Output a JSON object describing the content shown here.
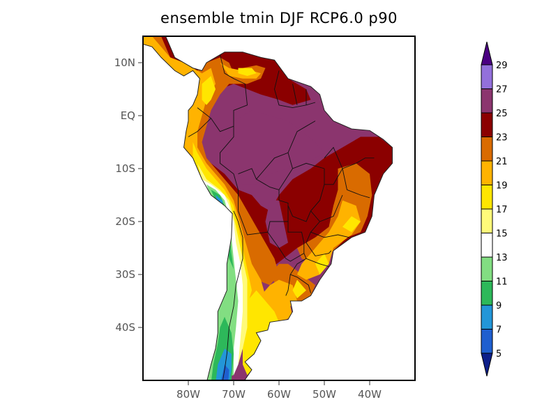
{
  "chart_data": {
    "type": "contour-map",
    "title": "ensemble tmin DJF RCP6.0 p90",
    "region": "South America",
    "xlim": [
      -90,
      -30
    ],
    "ylim": [
      -50,
      15
    ],
    "x_ticks": [
      {
        "value": -80,
        "label": "80W"
      },
      {
        "value": -70,
        "label": "70W"
      },
      {
        "value": -60,
        "label": "60W"
      },
      {
        "value": -50,
        "label": "50W"
      },
      {
        "value": -40,
        "label": "40W"
      }
    ],
    "y_ticks": [
      {
        "value": 10,
        "label": "10N"
      },
      {
        "value": 0,
        "label": "EQ"
      },
      {
        "value": -10,
        "label": "10S"
      },
      {
        "value": -20,
        "label": "20S"
      },
      {
        "value": -30,
        "label": "30S"
      },
      {
        "value": -40,
        "label": "40S"
      }
    ],
    "colorbar": {
      "levels": [
        "5",
        "7",
        "9",
        "11",
        "13",
        "15",
        "17",
        "19",
        "21",
        "23",
        "25",
        "27",
        "29"
      ],
      "colors": [
        "#0d1f8a",
        "#1f5fcf",
        "#2396d8",
        "#2db85a",
        "#82de82",
        "#ffffff",
        "#fffa7a",
        "#ffe600",
        "#ffb300",
        "#d96b00",
        "#8b0000",
        "#8b356e",
        "#9370db",
        "#4b0082"
      ],
      "under_color": "#0d1f8a",
      "over_color": "#4b0082",
      "extend": "both"
    }
  }
}
